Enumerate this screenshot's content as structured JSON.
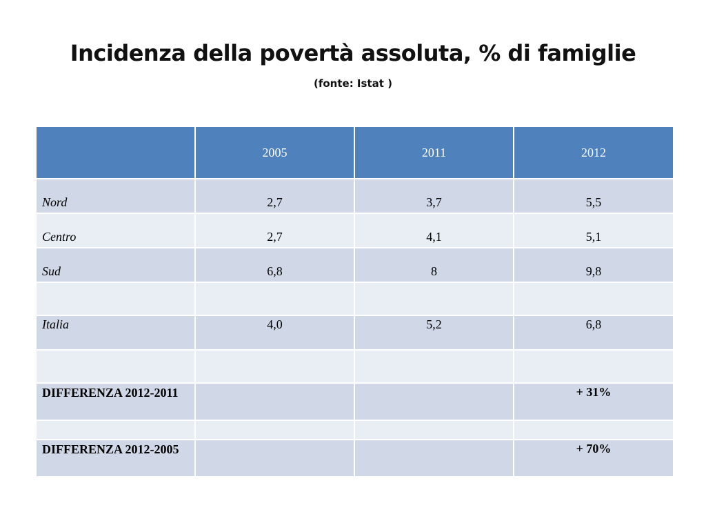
{
  "slide": {
    "title": "Incidenza della povertà assoluta, % di famiglie",
    "subtitle": "(fonte: Istat )"
  },
  "table": {
    "headers": [
      "",
      "2005",
      "2011",
      "2012"
    ],
    "rows": [
      {
        "label": "Nord",
        "v2005": "2,7",
        "v2011": "3,7",
        "v2012": "5,5"
      },
      {
        "label": "Centro",
        "v2005": "2,7",
        "v2011": "4,1",
        "v2012": "5,1"
      },
      {
        "label": "Sud",
        "v2005": "6,8",
        "v2011": "8",
        "v2012": "9,8"
      },
      {
        "label": "",
        "v2005": "",
        "v2011": "",
        "v2012": ""
      },
      {
        "label": "Italia",
        "v2005": "4,0",
        "v2011": "5,2",
        "v2012": "6,8"
      },
      {
        "label": "",
        "v2005": "",
        "v2011": "",
        "v2012": ""
      },
      {
        "label": "DIFFERENZA 2012-2011",
        "v2005": "",
        "v2011": "",
        "v2012": "+ 31%"
      },
      {
        "label": "",
        "v2005": "",
        "v2011": "",
        "v2012": ""
      },
      {
        "label": "DIFFERENZA 2012-2005",
        "v2005": "",
        "v2011": "",
        "v2012": "+ 70%"
      }
    ]
  },
  "colors": {
    "header_bg": "#4f81bd",
    "row_dark": "#d0d8e8",
    "row_light": "#e9edf4"
  }
}
